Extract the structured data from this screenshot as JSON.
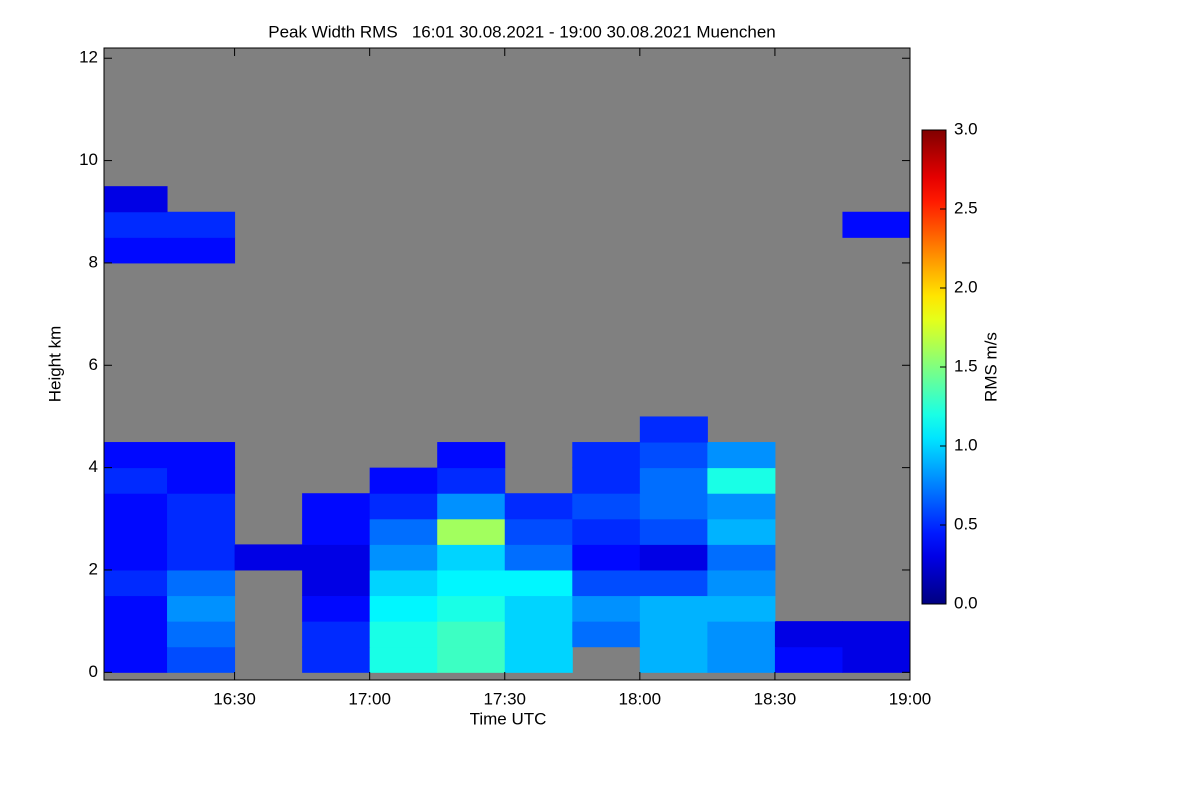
{
  "chart_data": {
    "type": "heatmap",
    "title": "Peak Width RMS   16:01 30.08.2021 - 19:00 30.08.2021 Muenchen",
    "xlabel": "Time UTC",
    "ylabel": "Height km",
    "colorbar_label": "RMS m/s",
    "xlim": [
      "16:01",
      "19:00"
    ],
    "xticks": [
      "16:30",
      "17:00",
      "17:30",
      "18:00",
      "18:30",
      "19:00"
    ],
    "ylim": [
      -0.15,
      12.2
    ],
    "yticks": [
      0,
      2,
      4,
      6,
      8,
      10,
      12
    ],
    "clim": [
      0,
      3
    ],
    "cticks": [
      {
        "value": 0,
        "label": "0.0"
      },
      {
        "value": 0.5,
        "label": "0.5"
      },
      {
        "value": 1,
        "label": "1.0"
      },
      {
        "value": 1.5,
        "label": "1.5"
      },
      {
        "value": 2,
        "label": "2.0"
      },
      {
        "value": 2.5,
        "label": "2.5"
      },
      {
        "value": 3,
        "label": "3.0"
      }
    ],
    "colormap": "jet",
    "missing_color": "#808080",
    "x": [
      "16:01",
      "16:15",
      "16:30",
      "16:45",
      "17:00",
      "17:15",
      "17:30",
      "17:45",
      "18:00",
      "18:15",
      "18:30",
      "18:45",
      "19:00"
    ],
    "y": [
      0,
      0.5,
      1,
      1.5,
      2,
      2.5,
      3,
      3.5,
      4,
      4.5,
      5,
      5.5,
      6,
      6.5,
      7,
      7.5,
      8,
      8.5,
      9,
      9.5,
      10
    ],
    "z": [
      [
        0.4,
        0.6,
        null,
        0.5,
        1.2,
        1.3,
        1.0,
        null,
        0.9,
        0.8,
        0.4,
        0.3
      ],
      [
        0.4,
        0.7,
        null,
        0.5,
        1.2,
        1.3,
        1.0,
        0.7,
        0.9,
        0.8,
        0.3,
        0.3
      ],
      [
        0.4,
        0.8,
        null,
        0.4,
        1.1,
        1.2,
        1.0,
        0.8,
        0.9,
        0.9,
        null,
        null
      ],
      [
        0.5,
        0.7,
        null,
        0.3,
        1.0,
        1.1,
        1.1,
        0.6,
        0.6,
        0.8,
        null,
        null
      ],
      [
        0.4,
        0.5,
        0.3,
        0.3,
        0.8,
        1.0,
        0.7,
        0.4,
        0.3,
        0.7,
        null,
        null
      ],
      [
        0.4,
        0.5,
        null,
        0.4,
        0.7,
        1.6,
        0.6,
        0.5,
        0.6,
        0.9,
        null,
        null
      ],
      [
        0.4,
        0.5,
        null,
        0.4,
        0.5,
        0.8,
        0.5,
        0.6,
        0.7,
        0.8,
        null,
        null
      ],
      [
        0.5,
        0.4,
        null,
        null,
        0.4,
        0.5,
        null,
        0.5,
        0.7,
        1.2,
        null,
        null
      ],
      [
        0.4,
        0.4,
        null,
        null,
        null,
        0.4,
        null,
        0.5,
        0.6,
        0.8,
        null,
        null
      ],
      [
        null,
        null,
        null,
        null,
        null,
        null,
        null,
        null,
        0.5,
        null,
        null,
        null
      ],
      [
        null,
        null,
        null,
        null,
        null,
        null,
        null,
        null,
        null,
        null,
        null,
        null
      ],
      [
        null,
        null,
        null,
        null,
        null,
        null,
        null,
        null,
        null,
        null,
        null,
        null
      ],
      [
        null,
        null,
        null,
        null,
        null,
        null,
        null,
        null,
        null,
        null,
        null,
        null
      ],
      [
        null,
        null,
        null,
        null,
        null,
        null,
        null,
        null,
        null,
        null,
        null,
        null
      ],
      [
        null,
        null,
        null,
        null,
        null,
        null,
        null,
        null,
        null,
        null,
        null,
        null
      ],
      [
        null,
        null,
        null,
        null,
        null,
        null,
        null,
        null,
        null,
        null,
        null,
        null
      ],
      [
        0.4,
        0.4,
        null,
        null,
        null,
        null,
        null,
        null,
        null,
        null,
        null,
        null
      ],
      [
        0.5,
        0.5,
        null,
        null,
        null,
        null,
        null,
        null,
        null,
        null,
        null,
        0.4
      ],
      [
        0.3,
        null,
        null,
        null,
        null,
        null,
        null,
        null,
        null,
        null,
        null,
        null
      ],
      [
        null,
        null,
        null,
        null,
        null,
        null,
        null,
        null,
        null,
        null,
        null,
        null
      ]
    ]
  }
}
